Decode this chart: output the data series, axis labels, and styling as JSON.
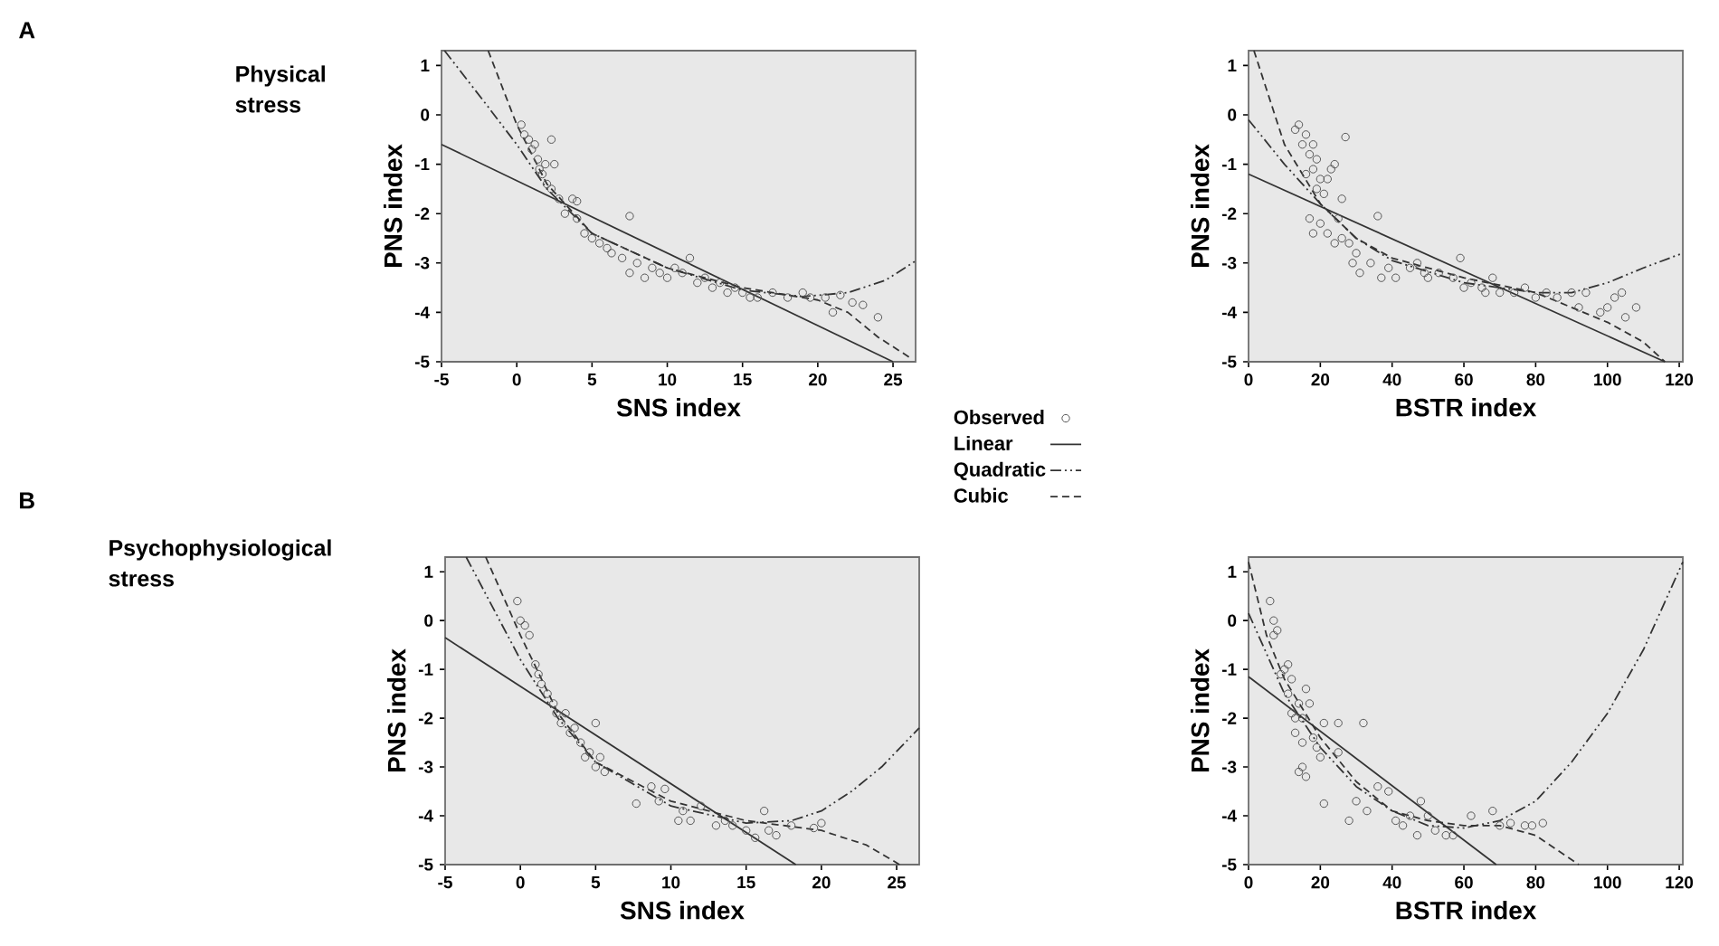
{
  "chart_data": [
    {
      "type": "scatter",
      "title": "Physical stress",
      "annotations": [
        "A"
      ],
      "xlabel": "SNS index",
      "ylabel": "PNS index",
      "xlim": [
        -5,
        26.5
      ],
      "ylim": [
        -5,
        1.3
      ],
      "xticks": [
        -5,
        0,
        5,
        10,
        15,
        20,
        25
      ],
      "yticks": [
        -5,
        -4,
        -3,
        -2,
        -1,
        0,
        1
      ],
      "legend": "bottom right",
      "series": [
        {
          "name": "Observed",
          "type": "scatter",
          "marker": "circle",
          "color": "#555555",
          "x": [
            0.3,
            0.5,
            0.8,
            1.0,
            1.2,
            1.4,
            1.5,
            1.7,
            1.9,
            2.0,
            2.3,
            2.5,
            2.3,
            2.8,
            3.2,
            3.7,
            4.0,
            4.5,
            5.0,
            5.5,
            6.0,
            6.3,
            7.0,
            7.5,
            8.0,
            8.5,
            9.0,
            9.5,
            10.0,
            10.5,
            11.0,
            11.5,
            12.0,
            12.5,
            13.0,
            13.5,
            14.0,
            14.5,
            15.0,
            15.5,
            16.0,
            17.0,
            18.0,
            19.0,
            19.5,
            20.5,
            21.0,
            21.5,
            22.3,
            23.0,
            24.0,
            7.5,
            4.0
          ],
          "values": [
            -0.2,
            -0.4,
            -0.5,
            -0.7,
            -0.6,
            -0.9,
            -1.1,
            -1.2,
            -1.0,
            -1.4,
            -0.5,
            -1.0,
            -1.5,
            -1.7,
            -2.0,
            -1.7,
            -2.1,
            -2.4,
            -2.5,
            -2.6,
            -2.7,
            -2.8,
            -2.9,
            -3.2,
            -3.0,
            -3.3,
            -3.1,
            -3.2,
            -3.3,
            -3.1,
            -3.2,
            -2.9,
            -3.4,
            -3.3,
            -3.5,
            -3.4,
            -3.6,
            -3.5,
            -3.6,
            -3.7,
            -3.7,
            -3.6,
            -3.7,
            -3.6,
            -3.7,
            -3.7,
            -4.0,
            -3.65,
            -3.8,
            -3.85,
            -4.1,
            -2.05,
            -1.75
          ]
        },
        {
          "name": "Linear",
          "type": "line",
          "marker": "none",
          "line_style": "solid",
          "color": "#333333",
          "x": [
            -5,
            25
          ],
          "values": [
            -0.6,
            -5.0
          ]
        },
        {
          "name": "Quadratic",
          "type": "line",
          "marker": "none",
          "line_style": "dashdotted",
          "color": "#333333",
          "x": [
            -4.8,
            -2,
            0,
            2,
            5,
            10,
            15,
            19,
            22,
            24.5,
            26.5
          ],
          "values": [
            1.3,
            0.2,
            -0.6,
            -1.5,
            -2.4,
            -3.1,
            -3.55,
            -3.68,
            -3.6,
            -3.35,
            -2.96
          ]
        },
        {
          "name": "Cubic",
          "type": "line",
          "marker": "none",
          "line_style": "dashed",
          "color": "#333333",
          "x": [
            -1.9,
            0,
            2,
            5,
            10,
            15,
            20,
            22,
            24,
            26.3
          ],
          "values": [
            1.3,
            -0.2,
            -1.4,
            -2.4,
            -3.1,
            -3.5,
            -3.75,
            -4.0,
            -4.5,
            -4.95
          ]
        }
      ]
    },
    {
      "type": "scatter",
      "xlabel": "BSTR index",
      "ylabel": "PNS index",
      "xlim": [
        0,
        121
      ],
      "ylim": [
        -5,
        1.3
      ],
      "xticks": [
        0,
        20,
        40,
        60,
        80,
        100,
        120
      ],
      "yticks": [
        -5,
        -4,
        -3,
        -2,
        -1,
        0,
        1
      ],
      "series": [
        {
          "type": "scatter",
          "marker": "circle",
          "color": "#555555",
          "x": [
            13,
            14,
            15,
            16,
            17,
            18,
            19,
            16,
            18,
            19,
            20,
            21,
            22,
            23,
            24,
            27,
            26,
            17,
            18,
            20,
            22,
            24,
            25,
            26,
            28,
            29,
            30,
            31,
            34,
            36,
            37,
            39,
            41,
            45,
            47,
            49,
            50,
            53,
            57,
            59,
            60,
            62,
            65,
            66,
            68,
            70,
            74,
            77,
            80,
            83,
            86,
            90,
            92,
            94,
            98,
            100,
            102,
            104,
            105,
            108
          ],
          "values": [
            -0.3,
            -0.2,
            -0.6,
            -0.4,
            -0.8,
            -0.6,
            -0.9,
            -1.2,
            -1.1,
            -1.5,
            -1.3,
            -1.6,
            -1.3,
            -1.1,
            -1.0,
            -0.45,
            -1.7,
            -2.1,
            -2.4,
            -2.2,
            -2.4,
            -2.6,
            -2.1,
            -2.5,
            -2.6,
            -3.0,
            -2.8,
            -3.2,
            -3.0,
            -2.05,
            -3.3,
            -3.1,
            -3.3,
            -3.1,
            -3.0,
            -3.2,
            -3.3,
            -3.2,
            -3.3,
            -2.9,
            -3.5,
            -3.4,
            -3.5,
            -3.6,
            -3.3,
            -3.6,
            -3.6,
            -3.5,
            -3.7,
            -3.6,
            -3.7,
            -3.6,
            -3.9,
            -3.6,
            -4.0,
            -3.9,
            -3.7,
            -3.6,
            -4.1,
            -3.9
          ]
        },
        {
          "type": "line",
          "marker": "none",
          "line_style": "solid",
          "color": "#333333",
          "x": [
            0,
            116
          ],
          "values": [
            -1.2,
            -5.0
          ]
        },
        {
          "type": "line",
          "marker": "none",
          "line_style": "dashdotted",
          "color": "#333333",
          "x": [
            0,
            10,
            20,
            30,
            40,
            60,
            80,
            90,
            100,
            110,
            121
          ],
          "values": [
            -0.1,
            -1.0,
            -1.8,
            -2.5,
            -2.95,
            -3.4,
            -3.6,
            -3.6,
            -3.4,
            -3.1,
            -2.8
          ]
        },
        {
          "type": "line",
          "marker": "none",
          "line_style": "dashed",
          "color": "#333333",
          "x": [
            1.5,
            10,
            15,
            20,
            30,
            40,
            60,
            80,
            100,
            110,
            116
          ],
          "values": [
            1.3,
            -0.6,
            -1.2,
            -1.8,
            -2.5,
            -2.9,
            -3.3,
            -3.6,
            -4.2,
            -4.6,
            -5.0
          ]
        }
      ]
    },
    {
      "type": "scatter",
      "title": "Psychophysiological stress",
      "annotations": [
        "B"
      ],
      "xlabel": "SNS index",
      "ylabel": "PNS index",
      "xlim": [
        -5,
        26.5
      ],
      "ylim": [
        -5,
        1.3
      ],
      "xticks": [
        -5,
        0,
        5,
        10,
        15,
        20,
        25
      ],
      "yticks": [
        -5,
        -4,
        -3,
        -2,
        -1,
        0,
        1
      ],
      "series": [
        {
          "type": "scatter",
          "marker": "circle",
          "color": "#555555",
          "x": [
            -0.2,
            0,
            0.3,
            0.6,
            1.0,
            1.2,
            1.4,
            1.8,
            2.2,
            2.4,
            2.7,
            3.0,
            3.3,
            3.6,
            4.0,
            4.3,
            4.6,
            5.0,
            5.0,
            5.3,
            5.6,
            7.7,
            8.7,
            9.2,
            9.6,
            10.5,
            10.8,
            11.3,
            12.0,
            13.0,
            13.6,
            14.1,
            15.0,
            15.6,
            16.2,
            16.5,
            17.0,
            18.0,
            19.5,
            20.0
          ],
          "values": [
            0.4,
            0.0,
            -0.1,
            -0.3,
            -0.9,
            -1.1,
            -1.3,
            -1.5,
            -1.7,
            -1.9,
            -2.1,
            -1.9,
            -2.3,
            -2.2,
            -2.5,
            -2.8,
            -2.7,
            -2.1,
            -3.0,
            -2.8,
            -3.1,
            -3.75,
            -3.4,
            -3.7,
            -3.45,
            -4.1,
            -3.9,
            -4.1,
            -3.8,
            -4.2,
            -4.1,
            -4.2,
            -4.3,
            -4.45,
            -3.9,
            -4.3,
            -4.4,
            -4.2,
            -4.25,
            -4.15
          ]
        },
        {
          "type": "line",
          "marker": "none",
          "line_style": "solid",
          "color": "#333333",
          "x": [
            -5,
            18.3
          ],
          "values": [
            -0.35,
            -5.0
          ]
        },
        {
          "type": "line",
          "marker": "none",
          "line_style": "dashdotted",
          "color": "#333333",
          "x": [
            -3.6,
            0,
            2.5,
            5,
            10,
            15,
            18,
            20,
            22,
            24,
            26.5
          ],
          "values": [
            1.3,
            -0.8,
            -2.0,
            -2.9,
            -3.8,
            -4.15,
            -4.1,
            -3.9,
            -3.5,
            -3.0,
            -2.2
          ]
        },
        {
          "type": "line",
          "marker": "none",
          "line_style": "dashed",
          "color": "#333333",
          "x": [
            -2.3,
            0,
            2.5,
            5,
            10,
            15,
            20,
            23,
            25.2
          ],
          "values": [
            1.3,
            -0.3,
            -1.9,
            -2.9,
            -3.7,
            -4.1,
            -4.3,
            -4.6,
            -5.0
          ]
        }
      ]
    },
    {
      "type": "scatter",
      "xlabel": "BSTR index",
      "ylabel": "PNS index",
      "xlim": [
        0,
        121
      ],
      "ylim": [
        -5,
        1.3
      ],
      "xticks": [
        0,
        20,
        40,
        60,
        80,
        100,
        120
      ],
      "yticks": [
        -5,
        -4,
        -3,
        -2,
        -1,
        0,
        1
      ],
      "series": [
        {
          "type": "scatter",
          "marker": "circle",
          "color": "#555555",
          "x": [
            6,
            7,
            7,
            8,
            9,
            10,
            11,
            12,
            11,
            12,
            13,
            13,
            14,
            15,
            15,
            14,
            15,
            16,
            16,
            17,
            18,
            19,
            20,
            21,
            21,
            25,
            25,
            28,
            30,
            32,
            33,
            36,
            39,
            41,
            43,
            45,
            47,
            48,
            50,
            52,
            55,
            57,
            62,
            68,
            70,
            73,
            77,
            79,
            82
          ],
          "values": [
            0.4,
            0.0,
            -0.3,
            -0.2,
            -1.1,
            -1.0,
            -0.9,
            -1.2,
            -1.5,
            -1.9,
            -2.0,
            -2.3,
            -1.7,
            -2.0,
            -2.5,
            -3.1,
            -3.0,
            -3.2,
            -1.4,
            -1.7,
            -2.4,
            -2.6,
            -2.8,
            -2.1,
            -3.75,
            -2.7,
            -2.1,
            -4.1,
            -3.7,
            -2.1,
            -3.9,
            -3.4,
            -3.5,
            -4.1,
            -4.2,
            -4.0,
            -4.4,
            -3.7,
            -4.0,
            -4.3,
            -4.4,
            -4.4,
            -4.0,
            -3.9,
            -4.2,
            -4.15,
            -4.2,
            -4.2,
            -4.15
          ]
        },
        {
          "type": "line",
          "marker": "none",
          "line_style": "solid",
          "color": "#333333",
          "x": [
            0,
            69
          ],
          "values": [
            -1.15,
            -5.0
          ]
        },
        {
          "type": "line",
          "marker": "none",
          "line_style": "dashdotted",
          "color": "#333333",
          "x": [
            0,
            10,
            20,
            30,
            40,
            50,
            60,
            70,
            80,
            90,
            100,
            110,
            121
          ],
          "values": [
            0.15,
            -1.5,
            -2.6,
            -3.4,
            -3.9,
            -4.2,
            -4.25,
            -4.1,
            -3.7,
            -2.9,
            -1.9,
            -0.6,
            1.2
          ]
        },
        {
          "type": "line",
          "marker": "none",
          "line_style": "dashed",
          "color": "#333333",
          "x": [
            0,
            5,
            10,
            20,
            30,
            40,
            50,
            60,
            70,
            80,
            88,
            92
          ],
          "values": [
            1.2,
            -0.3,
            -1.2,
            -2.4,
            -3.3,
            -3.9,
            -4.1,
            -4.2,
            -4.2,
            -4.4,
            -4.8,
            -5.0
          ]
        }
      ]
    }
  ]
}
